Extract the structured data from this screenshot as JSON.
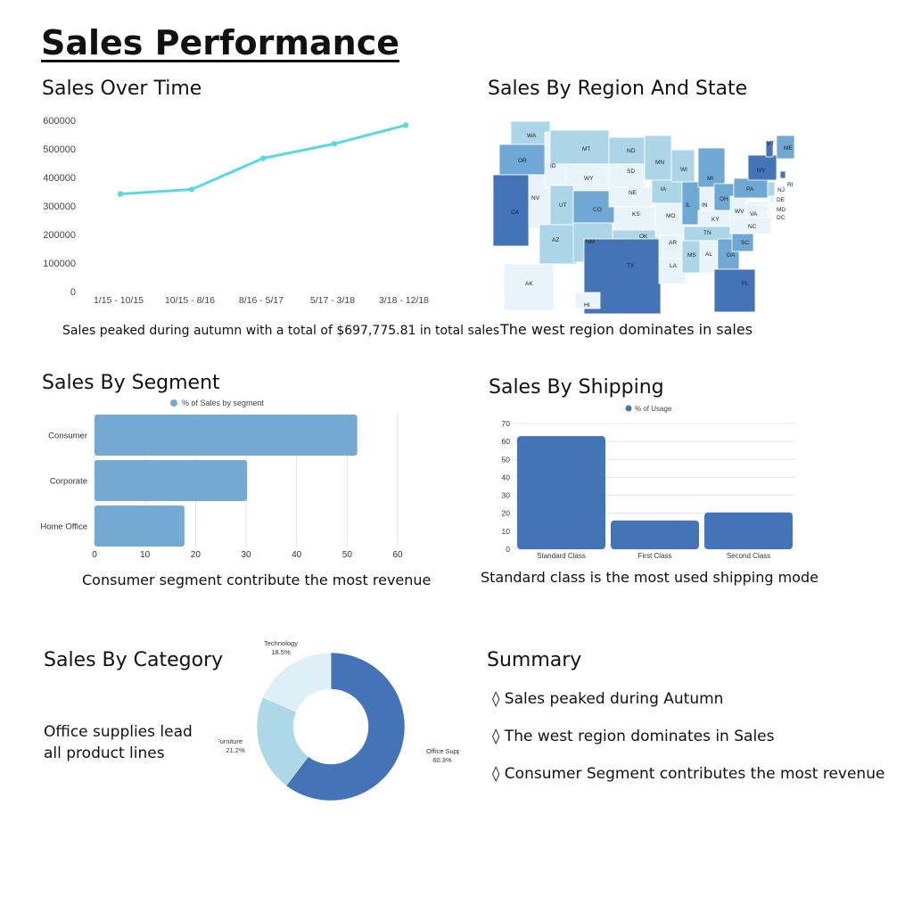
{
  "page": {
    "title": "Sales Performance"
  },
  "sections": {
    "over_time": {
      "title": "Sales Over Time",
      "caption": "Sales peaked during autumn with a total of $697,775.81 in total sales"
    },
    "region": {
      "title": "Sales By Region And State",
      "caption": "The west region dominates in sales"
    },
    "segment": {
      "title": "Sales By Segment",
      "caption": "Consumer segment contribute the most revenue"
    },
    "shipping": {
      "title": "Sales By Shipping",
      "caption": "Standard class is the most used shipping mode"
    },
    "category": {
      "title": "Sales By Category",
      "caption_line1": "Office supplies lead",
      "caption_line2": "all product lines"
    },
    "summary": {
      "title": "Summary",
      "items": [
        "◊ Sales peaked during Autumn",
        "◊ The west region dominates in Sales",
        "◊ Consumer Segment contributes the most revenue"
      ]
    }
  },
  "colors": {
    "line": "#5ad8e0",
    "segment_bar": "#73a9d2",
    "shipping_bar": "#4573b8",
    "pie": [
      "#4573b8",
      "#add8e8",
      "#def0f6"
    ],
    "map_shades": [
      "#e8f4fa",
      "#acd6e8",
      "#6fa8d2",
      "#4573b8"
    ]
  },
  "map": {
    "state_labels": [
      "WA",
      "OR",
      "CA",
      "NV",
      "ID",
      "MT",
      "WY",
      "UT",
      "AZ",
      "CO",
      "NM",
      "ND",
      "SD",
      "NE",
      "KS",
      "OK",
      "TX",
      "MN",
      "IA",
      "MO",
      "AR",
      "LA",
      "WI",
      "IL",
      "MI",
      "IN",
      "OH",
      "KY",
      "TN",
      "MS",
      "AL",
      "GA",
      "FL",
      "SC",
      "NC",
      "VA",
      "WV",
      "PA",
      "NY",
      "VT",
      "ME",
      "NJ",
      "DE",
      "MD",
      "DC",
      "RI",
      "AK",
      "HI"
    ]
  },
  "chart_data": [
    {
      "id": "sales_over_time",
      "type": "line",
      "categories": [
        "1/15 - 10/15",
        "10/15 - 8/16",
        "8/16 - 5/17",
        "5/17 - 3/18",
        "3/18 - 12/18"
      ],
      "values": [
        342000,
        358000,
        467000,
        518000,
        583000
      ],
      "ylim": [
        0,
        600000
      ],
      "yticks": [
        "0",
        "100000",
        "200000",
        "300000",
        "400000",
        "500000",
        "600000"
      ],
      "grid": false
    },
    {
      "id": "sales_by_segment",
      "type": "bar",
      "orientation": "horizontal",
      "categories": [
        "Consumer",
        "Corporate",
        "Home Office"
      ],
      "series": [
        {
          "name": "% of Sales by segment",
          "values": [
            52,
            30.2,
            17.8
          ]
        }
      ],
      "xlim": [
        0,
        60
      ],
      "xticks": [
        "0",
        "10",
        "20",
        "30",
        "40",
        "50",
        "60"
      ],
      "legend": "top"
    },
    {
      "id": "sales_by_shipping",
      "type": "bar",
      "categories": [
        "Standard Class",
        "First Class",
        "Second Class"
      ],
      "series": [
        {
          "name": "% of Usage",
          "values": [
            63,
            16,
            20.5
          ]
        }
      ],
      "ylim": [
        0,
        70
      ],
      "yticks": [
        "0",
        "10",
        "20",
        "30",
        "40",
        "50",
        "60",
        "70"
      ],
      "grid": true,
      "legend": "top"
    },
    {
      "id": "sales_by_category",
      "type": "pie",
      "donut": true,
      "slices": [
        {
          "label": "Office Supplies",
          "pct_label": "60.3%",
          "value": 60.3
        },
        {
          "label": "Furniture",
          "pct_label": "21.2%",
          "value": 21.2
        },
        {
          "label": "Technology",
          "pct_label": "18.5%",
          "value": 18.5
        }
      ]
    }
  ]
}
